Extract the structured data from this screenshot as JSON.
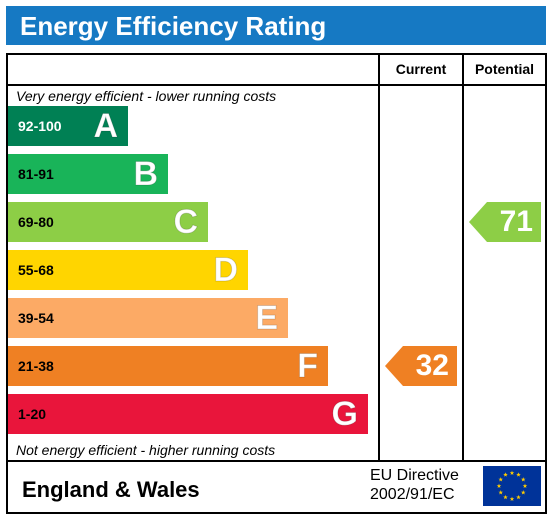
{
  "title": "Energy Efficiency Rating",
  "columns": {
    "current": "Current",
    "potential": "Potential"
  },
  "top_note": "Very energy efficient - lower running costs",
  "bottom_note": "Not energy efficient - higher running costs",
  "bands": [
    {
      "range": "92-100",
      "letter": "A",
      "color": "#008054",
      "range_color": "#ffffff"
    },
    {
      "range": "81-91",
      "letter": "B",
      "color": "#19b459",
      "range_color": "#000000"
    },
    {
      "range": "69-80",
      "letter": "C",
      "color": "#8dce46",
      "range_color": "#000000"
    },
    {
      "range": "55-68",
      "letter": "D",
      "color": "#ffd500",
      "range_color": "#000000"
    },
    {
      "range": "39-54",
      "letter": "E",
      "color": "#fcaa65",
      "range_color": "#000000"
    },
    {
      "range": "21-38",
      "letter": "F",
      "color": "#ef8023",
      "range_color": "#000000"
    },
    {
      "range": "1-20",
      "letter": "G",
      "color": "#e9153b",
      "range_color": "#000000"
    }
  ],
  "current": {
    "value": "32",
    "band": "F",
    "color": "#ef8023"
  },
  "potential": {
    "value": "71",
    "band": "C",
    "color": "#8dce46"
  },
  "footer": {
    "region": "England & Wales",
    "directive_line1": "EU Directive",
    "directive_line2": "2002/91/EC",
    "flag_icon": "eu-flag-icon",
    "flag_color": "#003399",
    "star_color": "#ffcc00"
  }
}
